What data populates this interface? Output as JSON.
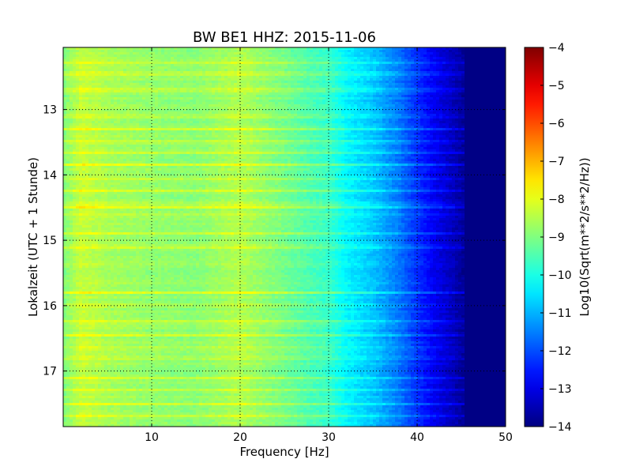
{
  "chart_data": {
    "type": "heatmap",
    "title": "BW BE1 HHZ: 2015-11-06",
    "xlabel": "Frequency [Hz]",
    "ylabel": "Lokalzeit (UTC + 1 Stunde)",
    "xlim": [
      0,
      50
    ],
    "ylim": [
      12.05,
      17.85
    ],
    "y_inverted": true,
    "grid": true,
    "grid_style": "dotted",
    "x_ticks": [
      10,
      20,
      30,
      40,
      50
    ],
    "y_ticks": [
      13,
      14,
      15,
      16,
      17
    ],
    "colormap": "jet",
    "colorbar": {
      "label": "Log10(Sqrt(m**2/s**2/Hz))",
      "vmin": -14,
      "vmax": -4,
      "ticks": [
        -4,
        -5,
        -6,
        -7,
        -8,
        -9,
        -10,
        -11,
        -12,
        -13,
        -14
      ]
    },
    "frequency_profile": {
      "freq": [
        0,
        2,
        5,
        10,
        15,
        20,
        25,
        28,
        30,
        32,
        35,
        38,
        40,
        42,
        44,
        45,
        46,
        50
      ],
      "log_amplitude": [
        -9.0,
        -8.3,
        -8.6,
        -8.8,
        -8.9,
        -8.5,
        -9.1,
        -9.5,
        -9.7,
        -10.3,
        -10.8,
        -11.6,
        -12.3,
        -12.9,
        -13.4,
        -13.7,
        -13.9,
        -13.9
      ]
    },
    "bright_bands_time": [
      12.3,
      12.45,
      12.7,
      13.1,
      13.3,
      13.5,
      13.65,
      13.85,
      14.05,
      14.25,
      14.45,
      14.5,
      14.62,
      14.9,
      15.1,
      15.8,
      16.0,
      16.25,
      16.45,
      16.65,
      16.8,
      17.1,
      17.3,
      17.5,
      17.7
    ]
  }
}
